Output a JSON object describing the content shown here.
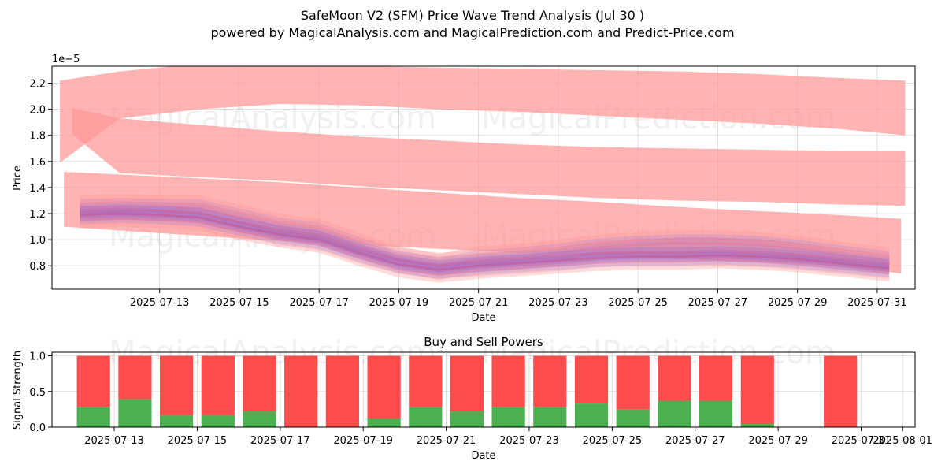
{
  "title": "SafeMoon V2 (SFM) Price Wave Trend Analysis (Jul 30 )",
  "subtitle": "powered by MagicalAnalysis.com and MagicalPrediction.com and Predict-Price.com",
  "watermarks": [
    "MagicalAnalysis.com",
    "MagicalPrediction.com"
  ],
  "colors": {
    "sell": "#ff4d4d",
    "buy": "#4caf50",
    "band": "#ff9999",
    "wave_blue": "#8080ff",
    "wave_red": "#d04070"
  },
  "chart_data": [
    {
      "type": "area",
      "name": "price-wave-chart",
      "xlabel": "Date",
      "ylabel": "Price",
      "offset_label": "1e−5",
      "xlim": [
        10.3,
        31.95
      ],
      "ylim": [
        0.62,
        2.33
      ],
      "x_tick_values": [
        13,
        15,
        17,
        19,
        21,
        23,
        25,
        27,
        29,
        31
      ],
      "x_tick_labels": [
        "2025-07-13",
        "2025-07-15",
        "2025-07-17",
        "2025-07-19",
        "2025-07-21",
        "2025-07-23",
        "2025-07-25",
        "2025-07-27",
        "2025-07-29",
        "2025-07-31"
      ],
      "y_tick_values": [
        0.8,
        1.0,
        1.2,
        1.4,
        1.6,
        1.8,
        2.0,
        2.2
      ],
      "y_tick_labels": [
        "0.8",
        "1.0",
        "1.2",
        "1.4",
        "1.6",
        "1.8",
        "2.0",
        "2.2"
      ],
      "bands": [
        {
          "x": [
            10.5,
            12,
            14,
            16,
            18,
            20,
            22,
            24,
            26,
            28,
            30,
            31.7
          ],
          "lower": [
            1.59,
            1.93,
            2.0,
            2.04,
            2.03,
            2.0,
            1.98,
            1.95,
            1.92,
            1.89,
            1.85,
            1.8
          ],
          "upper": [
            2.22,
            2.29,
            2.35,
            2.35,
            2.33,
            2.32,
            2.31,
            2.3,
            2.29,
            2.27,
            2.24,
            2.22
          ]
        },
        {
          "x": [
            10.8,
            12,
            14,
            16,
            18,
            20,
            22,
            24,
            26,
            28,
            30,
            31.7
          ],
          "lower": [
            1.81,
            1.51,
            1.48,
            1.45,
            1.41,
            1.38,
            1.35,
            1.32,
            1.3,
            1.29,
            1.27,
            1.26
          ],
          "upper": [
            2.01,
            1.93,
            1.88,
            1.83,
            1.79,
            1.76,
            1.73,
            1.71,
            1.7,
            1.69,
            1.68,
            1.68
          ]
        },
        {
          "x": [
            10.6,
            12,
            14,
            16,
            18,
            20,
            22,
            24,
            26,
            28,
            30,
            31.6
          ],
          "lower": [
            1.1,
            1.07,
            1.03,
            0.99,
            0.96,
            0.93,
            0.9,
            0.88,
            0.85,
            0.83,
            0.8,
            0.74
          ],
          "upper": [
            1.52,
            1.5,
            1.47,
            1.44,
            1.4,
            1.36,
            1.32,
            1.29,
            1.25,
            1.22,
            1.19,
            1.16
          ]
        }
      ],
      "waves": [
        {
          "x": [
            11,
            12,
            13,
            14,
            15,
            16,
            17,
            18,
            19,
            20,
            21,
            22,
            23,
            24,
            25,
            26,
            27,
            28,
            29,
            30,
            31.3
          ],
          "y": [
            1.24,
            1.25,
            1.24,
            1.24,
            1.17,
            1.1,
            1.06,
            0.95,
            0.85,
            0.79,
            0.85,
            0.87,
            0.9,
            0.94,
            0.96,
            0.97,
            0.97,
            0.96,
            0.93,
            0.89,
            0.84
          ]
        },
        {
          "x": [
            11,
            12,
            13,
            14,
            15,
            16,
            17,
            18,
            19,
            20,
            21,
            22,
            23,
            24,
            25,
            26,
            27,
            28,
            29,
            30,
            31.3
          ],
          "y": [
            1.21,
            1.22,
            1.22,
            1.2,
            1.13,
            1.06,
            1.02,
            0.92,
            0.84,
            0.8,
            0.82,
            0.84,
            0.86,
            0.89,
            0.9,
            0.9,
            0.9,
            0.89,
            0.87,
            0.84,
            0.8
          ]
        },
        {
          "x": [
            11,
            12,
            13,
            14,
            15,
            16,
            17,
            18,
            19,
            20,
            21,
            22,
            23,
            24,
            25,
            26,
            27,
            28,
            29,
            30,
            31.3
          ],
          "y": [
            1.19,
            1.2,
            1.19,
            1.17,
            1.1,
            1.04,
            1.0,
            0.9,
            0.81,
            0.77,
            0.8,
            0.82,
            0.84,
            0.86,
            0.87,
            0.87,
            0.88,
            0.87,
            0.85,
            0.82,
            0.78
          ]
        }
      ]
    },
    {
      "type": "bar",
      "name": "buy-sell-power-chart",
      "title": "Buy and Sell Powers",
      "xlabel": "Date",
      "ylabel": "Signal Strength",
      "xlim": [
        11.5,
        32.3
      ],
      "ylim": [
        0.0,
        1.05
      ],
      "x_tick_values": [
        13,
        15,
        17,
        19,
        21,
        23,
        25,
        27,
        29,
        31,
        32
      ],
      "x_tick_labels": [
        "2025-07-13",
        "2025-07-15",
        "2025-07-17",
        "2025-07-19",
        "2025-07-21",
        "2025-07-23",
        "2025-07-25",
        "2025-07-27",
        "2025-07-29",
        "2025-07-31",
        "2025-08-01"
      ],
      "y_tick_values": [
        0.0,
        0.5,
        1.0
      ],
      "y_tick_labels": [
        "0.0",
        "0.5",
        "1.0"
      ],
      "days": [
        12.5,
        13.5,
        14.5,
        15.5,
        16.5,
        17.5,
        18.5,
        19.5,
        20.5,
        21.5,
        22.5,
        23.5,
        24.5,
        25.5,
        26.5,
        27.5,
        28.5,
        30.5
      ],
      "buy": [
        0.28,
        0.39,
        0.17,
        0.17,
        0.22,
        0.0,
        0.0,
        0.11,
        0.28,
        0.22,
        0.28,
        0.28,
        0.33,
        0.25,
        0.37,
        0.37,
        0.05,
        0.0
      ],
      "sell": [
        0.72,
        0.61,
        0.83,
        0.83,
        0.78,
        1.0,
        1.0,
        0.89,
        0.72,
        0.78,
        0.72,
        0.72,
        0.67,
        0.75,
        0.63,
        0.63,
        0.95,
        1.0
      ]
    }
  ]
}
